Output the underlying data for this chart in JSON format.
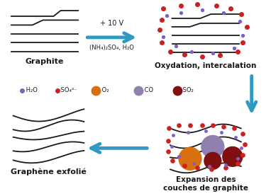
{
  "bg_color": "#ffffff",
  "arrow_color": "#2e9ac4",
  "dark": "#1a1a1a",
  "graphite_label": "Graphite",
  "oxydation_label": "Oxydation, intercalation",
  "expansion_label": "Expansion des\ncouches de graphite",
  "graphene_label": "Graphène exfolié",
  "arrow_label_top": "+ 10 V",
  "arrow_label_bottom": "(NH₄)₂SO₄, H₂O",
  "legend_items": [
    {
      "label": " H₂O",
      "color": "#8060c0",
      "size": 4
    },
    {
      "label": " SO₄²⁻",
      "color": "#cc2020",
      "size": 4
    },
    {
      "label": " O₂",
      "color": "#d97010",
      "size": 9
    },
    {
      "label": " CO",
      "color": "#9080b0",
      "size": 9
    },
    {
      "label": " SO₂",
      "color": "#801010",
      "size": 9
    }
  ],
  "red": "#cc2020",
  "purple": "#8060c0",
  "orange": "#d97010",
  "lavender": "#9080b0",
  "brown": "#801010"
}
